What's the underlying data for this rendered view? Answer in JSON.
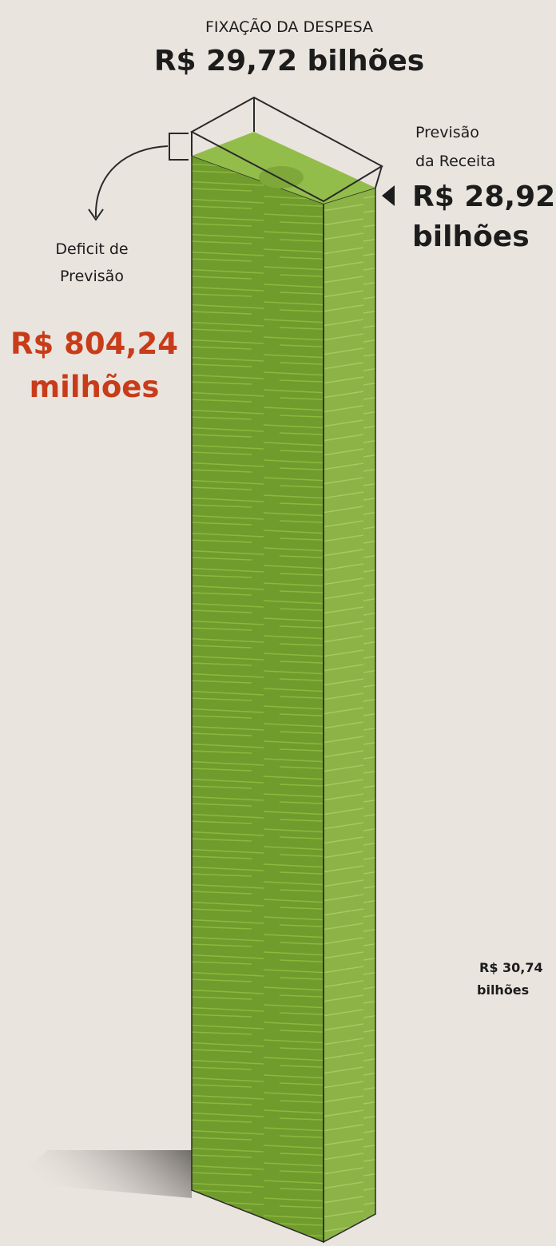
{
  "header": {
    "label": "FIXAÇÃO DA DESPESA",
    "value": "R$ 29,72 bilhões"
  },
  "receita": {
    "label_lines": [
      "Previsão",
      "da Receita"
    ],
    "value_lines": [
      "R$ 28,92",
      "bilhões"
    ]
  },
  "deficit": {
    "label_lines": [
      "Deficit de",
      "Previsão"
    ],
    "value_lines": [
      "R$ 804,24",
      "milhões"
    ]
  },
  "side_note": {
    "value_lines": [
      "R$ 30,74",
      "bilhões"
    ]
  }
}
